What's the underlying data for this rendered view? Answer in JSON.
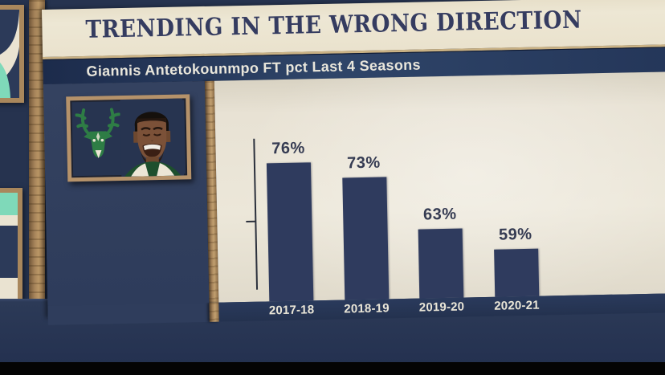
{
  "broadcast": {
    "title": "TRENDING IN THE WRONG DIRECTION",
    "subtitle": "Giannis Antetokounmpo FT pct Last 4 Seasons"
  },
  "chart_data": {
    "type": "bar",
    "title": "TRENDING IN THE WRONG DIRECTION",
    "subtitle": "Giannis Antetokounmpo FT pct Last 4 Seasons",
    "categories": [
      "2017-18",
      "2018-19",
      "2019-20",
      "2020-21"
    ],
    "values": [
      76,
      73,
      63,
      59
    ],
    "value_labels": [
      "76%",
      "73%",
      "63%",
      "59%"
    ],
    "xlabel": "",
    "ylabel": "",
    "ylim": [
      50,
      80
    ],
    "grid": false,
    "legend": false,
    "bar_color": "#2f3b5e",
    "plot_background": "#ece7d9",
    "y_axis": {
      "line": true,
      "unlabeled_mid_tick": true
    }
  },
  "photo_card": {
    "team_logo_icon": "milwaukee-bucks-deer-logo",
    "player_photo_icon": "giannis-headshot"
  },
  "colors": {
    "board_cream": "#ede7d4",
    "title_navy": "#353c60",
    "subtitle_bar_navy": "#2f4569",
    "panel_navy": "#31405f",
    "axis_strip_navy": "#253452",
    "wall_navy": "#26334f",
    "wood_tan": "#a5835a",
    "bucks_green": "#2e7d45",
    "art_teal": "#7fd9b9",
    "bottom_bar_black": "#040404"
  }
}
